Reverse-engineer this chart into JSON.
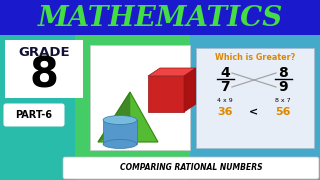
{
  "title": "MATHEMATICS",
  "title_color": "#44dd44",
  "bg_top_color": "#1a1acc",
  "bg_mid_left": "#2abcaa",
  "bg_mid_green": "#44cc66",
  "bg_mid_right": "#44aacc",
  "grade_label": "GRADE",
  "grade_number": "8",
  "part_label": "PART-6",
  "bottom_text": "COMPARING RATIONAL NUMBERS",
  "which_greater_title": "Which is Greater?",
  "frac1_num": "4",
  "frac1_den": "7",
  "frac2_num": "8",
  "frac2_den": "9",
  "cross1": "4 x 9",
  "cross2": "8 x 7",
  "result1": "36",
  "result2": "56",
  "compare": "<",
  "orange": "#dd8800",
  "wg_bg": "#e8eef8"
}
